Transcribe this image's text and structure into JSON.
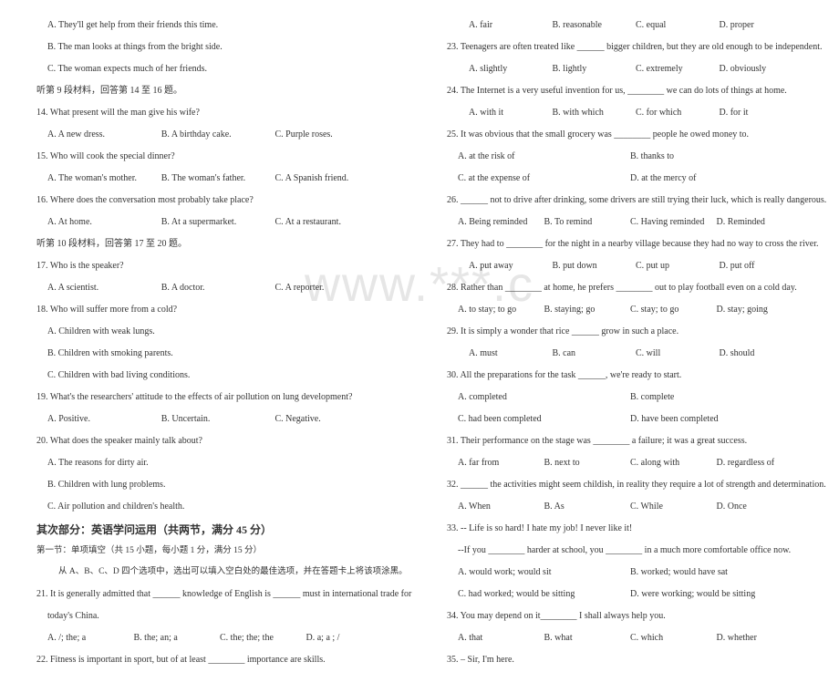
{
  "watermark": "www.***.c",
  "left": {
    "q13_a": "A. They'll get help from their friends this time.",
    "q13_b": "B. The man looks at things from the bright side.",
    "q13_c": "C. The woman expects much of her friends.",
    "listen9": "听第 9 段材料，回答第 14 至 16 题。",
    "q14": "14. What present will the man give his wife?",
    "q14_a": "A. A new dress.",
    "q14_b": "B. A birthday cake.",
    "q14_c": "C. Purple roses.",
    "q15": "15. Who will cook the special dinner?",
    "q15_a": "A. The woman's mother.",
    "q15_b": "B. The woman's father.",
    "q15_c": "C. A Spanish friend.",
    "q16": "16. Where does the conversation most probably take place?",
    "q16_a": "A. At home.",
    "q16_b": "B. At a supermarket.",
    "q16_c": "C. At a restaurant.",
    "listen10": "听第 10 段材料，回答第 17 至 20 题。",
    "q17": "17. Who is the speaker?",
    "q17_a": "A. A scientist.",
    "q17_b": "B. A doctor.",
    "q17_c": "C. A reporter.",
    "q18": "18. Who will suffer more from a cold?",
    "q18_a": "A. Children with weak lungs.",
    "q18_b": "B. Children with smoking parents.",
    "q18_c": "C. Children with bad living conditions.",
    "q19": "19. What's the researchers' attitude to the effects of air pollution on lung development?",
    "q19_a": "A. Positive.",
    "q19_b": "B. Uncertain.",
    "q19_c": "C. Negative.",
    "q20": "20. What does the speaker mainly talk about?",
    "q20_a": "A. The reasons for dirty air.",
    "q20_b": "B. Children with lung problems.",
    "q20_c": "C. Air pollution and children's health.",
    "section_title": "其次部分：英语学问运用（共两节，满分 45 分）",
    "section_sub": "第一节：单项填空（共 15 小题，每小题 1 分，满分 15 分）",
    "section_note": "从 A、B、C、D 四个选项中，选出可以填入空白处的最佳选项，并在答题卡上将该项涂黑。",
    "q21": "21. It is generally admitted that ______ knowledge of English is ______ must in international trade for",
    "q21_cont": "today's China.",
    "q21_a": "A. /; the; a",
    "q21_b": "B. the; an; a",
    "q21_c": "C. the; the; the",
    "q21_d": "D. a; a ; /",
    "q22": "22. Fitness is important in sport, but of at least ________ importance are skills."
  },
  "right": {
    "q22_a": "A. fair",
    "q22_b": "B. reasonable",
    "q22_c": "C. equal",
    "q22_d": "D. proper",
    "q23": "23. Teenagers are often treated like ______ bigger children, but they are old enough to be independent.",
    "q23_a": "A. slightly",
    "q23_b": "B. lightly",
    "q23_c": "C. extremely",
    "q23_d": "D. obviously",
    "q24": "24. The Internet is a very useful invention for us, ________ we can do lots of things at home.",
    "q24_a": "A. with it",
    "q24_b": "B. with which",
    "q24_c": "C. for which",
    "q24_d": "D. for it",
    "q25": "25. It was obvious that the small grocery was ________ people he owed money to.",
    "q25_a": "A. at the risk of",
    "q25_b": "B. thanks to",
    "q25_c": "C. at the expense of",
    "q25_d": "D. at the mercy of",
    "q26": "26. ______ not to drive after drinking, some drivers are still trying their luck, which is really dangerous.",
    "q26_a": "A. Being reminded",
    "q26_b": "B. To remind",
    "q26_c": "C. Having reminded",
    "q26_d": "D. Reminded",
    "q27": "27. They had to ________ for the night in a nearby village because they had no way to cross the river.",
    "q27_a": "A. put away",
    "q27_b": "B. put down",
    "q27_c": "C. put up",
    "q27_d": "D. put off",
    "q28": "28. Rather than ________ at home, he prefers ________ out to play football even on a cold day.",
    "q28_a": "A. to stay; to go",
    "q28_b": "B. staying; go",
    "q28_c": "C. stay; to go",
    "q28_d": "D. stay; going",
    "q29": "29. It is simply a wonder that rice ______ grow in such a place.",
    "q29_a": "A. must",
    "q29_b": "B. can",
    "q29_c": "C. will",
    "q29_d": "D. should",
    "q30": "30. All the preparations for the task ______, we're ready to start.",
    "q30_a": "A. completed",
    "q30_b": "B. complete",
    "q30_c": "C. had been completed",
    "q30_d": "D. have been completed",
    "q31": "31. Their performance on the stage was ________ a failure; it was a great success.",
    "q31_a": "A. far from",
    "q31_b": "B. next to",
    "q31_c": "C. along with",
    "q31_d": "D. regardless of",
    "q32": "32. ______ the activities might seem childish, in reality they require a lot of strength and determination.",
    "q32_a": "A. When",
    "q32_b": "B. As",
    "q32_c": "C. While",
    "q32_d": "D. Once",
    "q33": "33. -- Life is so hard! I hate my job! I never like it!",
    "q33_cont": "--If you ________ harder at school, you ________ in a much more comfortable office now.",
    "q33_a": "A. would work; would sit",
    "q33_b": "B. worked; would have sat",
    "q33_c": "C. had worked; would be sitting",
    "q33_d": "D. were working; would be sitting",
    "q34": "34. You may depend on it________ I shall always help you.",
    "q34_a": "A. that",
    "q34_b": "B. what",
    "q34_c": "C. which",
    "q34_d": "D. whether",
    "q35": "35. – Sir, I'm here."
  }
}
